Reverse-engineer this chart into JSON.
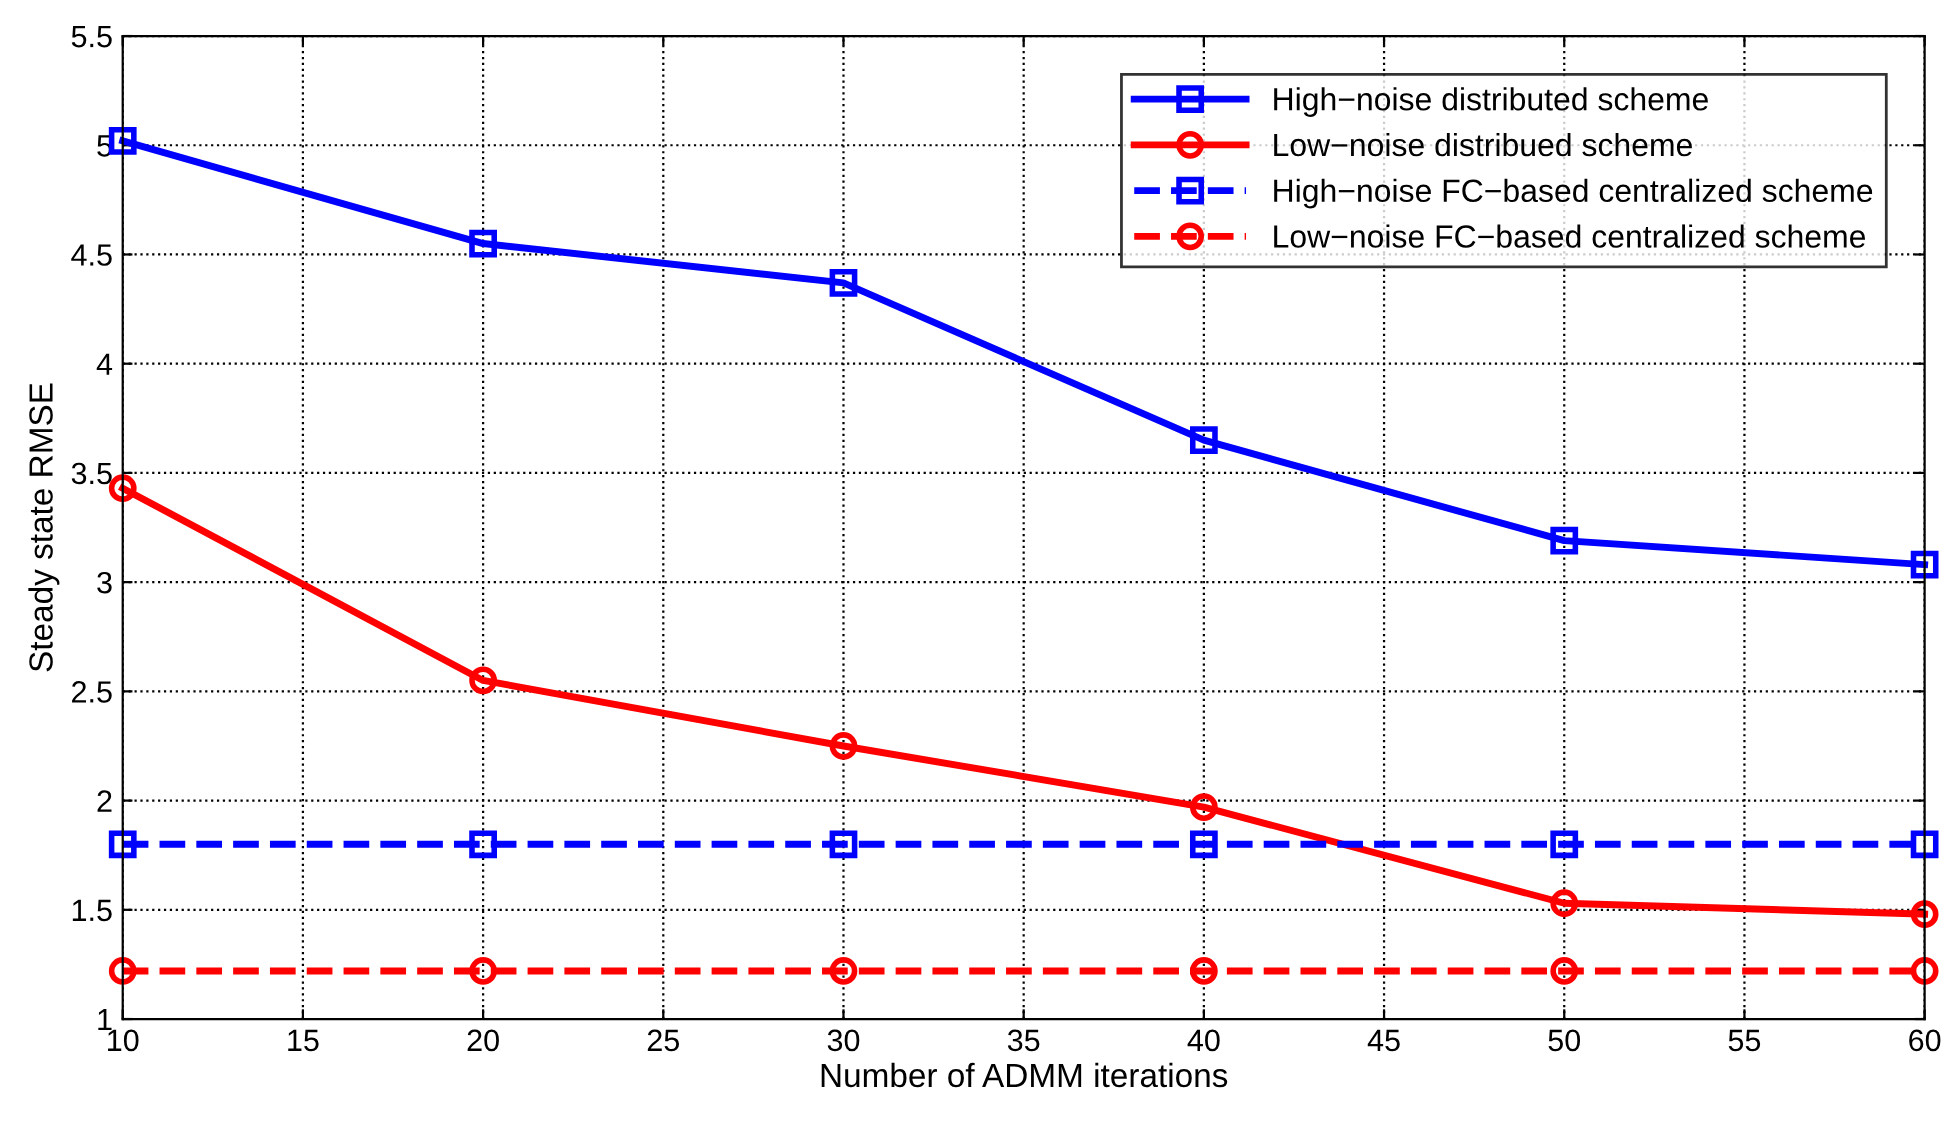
{
  "chart_data": {
    "type": "line",
    "xlabel": "Number of ADMM iterations",
    "ylabel": "Steady state RMSE",
    "x": [
      10,
      20,
      30,
      40,
      50,
      60
    ],
    "series": [
      {
        "name": "High−noise distributed scheme",
        "color": "#0000ff",
        "marker": "square",
        "line_style": "solid",
        "values": [
          5.02,
          4.55,
          4.37,
          3.65,
          3.19,
          3.08
        ]
      },
      {
        "name": "Low−noise distribued scheme",
        "color": "#ff0000",
        "marker": "circle",
        "line_style": "solid",
        "values": [
          3.43,
          2.55,
          2.25,
          1.97,
          1.53,
          1.48
        ]
      },
      {
        "name": "High−noise FC−based centralized scheme",
        "color": "#0000ff",
        "marker": "square",
        "line_style": "dashed",
        "values": [
          1.8,
          1.8,
          1.8,
          1.8,
          1.8,
          1.8
        ]
      },
      {
        "name": "Low−noise FC−based centralized scheme",
        "color": "#ff0000",
        "marker": "circle",
        "line_style": "dashed",
        "values": [
          1.22,
          1.22,
          1.22,
          1.22,
          1.22,
          1.22
        ]
      }
    ],
    "xlim": [
      10,
      60
    ],
    "xticks": [
      10,
      15,
      20,
      25,
      30,
      35,
      40,
      45,
      50,
      55,
      60
    ],
    "ylim": [
      1,
      5.5
    ],
    "yticks": [
      1,
      1.5,
      2,
      2.5,
      3,
      3.5,
      4,
      4.5,
      5,
      5.5
    ],
    "grid": true,
    "legend": "top right"
  }
}
